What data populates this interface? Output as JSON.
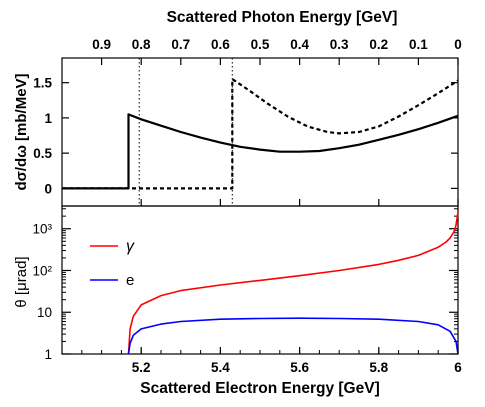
{
  "chart_data": [
    {
      "type": "line",
      "top_axis_label": "Scattered Photon Energy [GeV]",
      "top_ticks": [
        "0.9",
        "0.8",
        "0.7",
        "0.6",
        "0.5",
        "0.4",
        "0.3",
        "0.2",
        "0.1",
        "0"
      ],
      "ylabel": "dσ/dω [mb/MeV]",
      "y_ticks": [
        "0",
        "0.5",
        "1",
        "1.5"
      ],
      "xlim": [
        5.0,
        6.0
      ],
      "ylim": [
        -0.25,
        1.85
      ],
      "dashed_vertical_lines_at_x": [
        5.195,
        5.43
      ],
      "series": [
        {
          "style": "solid",
          "x": [
            5.0,
            5.168,
            5.168,
            5.2,
            5.25,
            5.3,
            5.35,
            5.4,
            5.45,
            5.5,
            5.55,
            5.6,
            5.65,
            5.7,
            5.75,
            5.8,
            5.85,
            5.9,
            5.95,
            6.0
          ],
          "y": [
            0,
            0,
            1.05,
            0.98,
            0.89,
            0.8,
            0.72,
            0.65,
            0.59,
            0.55,
            0.52,
            0.52,
            0.53,
            0.57,
            0.62,
            0.69,
            0.76,
            0.84,
            0.93,
            1.03
          ]
        },
        {
          "style": "dashed",
          "x": [
            5.0,
            5.43,
            5.43,
            5.47,
            5.52,
            5.57,
            5.62,
            5.67,
            5.7,
            5.75,
            5.8,
            5.85,
            5.9,
            5.95,
            6.0
          ],
          "y": [
            0,
            0,
            1.55,
            1.4,
            1.2,
            1.02,
            0.88,
            0.8,
            0.78,
            0.8,
            0.88,
            1.02,
            1.18,
            1.35,
            1.53
          ]
        }
      ]
    },
    {
      "type": "line",
      "xlabel": "Scattered Electron Energy [GeV]",
      "x_ticks": [
        "5.2",
        "5.4",
        "5.6",
        "5.8",
        "6"
      ],
      "ylabel": "θ [μrad]",
      "y_scale": "log",
      "y_ticks": [
        "1",
        "10",
        "10²",
        "10³"
      ],
      "xlim": [
        5.0,
        6.0
      ],
      "ylim": [
        1,
        3500
      ],
      "series": [
        {
          "name": "γ",
          "color": "#ff0000",
          "x": [
            5.168,
            5.172,
            5.18,
            5.2,
            5.25,
            5.3,
            5.4,
            5.5,
            5.6,
            5.7,
            5.8,
            5.85,
            5.9,
            5.95,
            5.97,
            5.98,
            5.99,
            5.995,
            6.0
          ],
          "y": [
            1,
            4,
            8,
            15,
            25,
            33,
            45,
            58,
            75,
            100,
            140,
            175,
            230,
            360,
            480,
            600,
            850,
            1200,
            2500
          ]
        },
        {
          "name": "e",
          "color": "#0000ff",
          "x": [
            5.168,
            5.172,
            5.18,
            5.2,
            5.25,
            5.3,
            5.4,
            5.5,
            5.6,
            5.7,
            5.8,
            5.9,
            5.95,
            5.98,
            5.995,
            6.0
          ],
          "y": [
            1,
            1.8,
            2.8,
            4.0,
            5.2,
            6.0,
            6.8,
            7.1,
            7.2,
            7.1,
            6.8,
            6.0,
            5.0,
            3.5,
            2.0,
            1
          ]
        }
      ]
    }
  ]
}
